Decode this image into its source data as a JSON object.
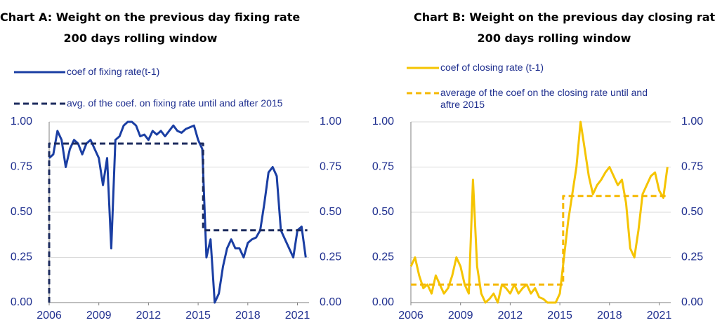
{
  "chart_data": [
    {
      "type": "line",
      "title": "Chart A: Weight on the previous day fixing rate",
      "subtitle": "200 days rolling window",
      "xlim": [
        2006,
        2021.7
      ],
      "xticks": [
        2006,
        2009,
        2012,
        2015,
        2018,
        2021
      ],
      "ylim": [
        0,
        1
      ],
      "yticks": [
        {
          "value": 0,
          "label": "0.00"
        },
        {
          "value": 0.25,
          "label": "0.25"
        },
        {
          "value": 0.5,
          "label": "0.50"
        },
        {
          "value": 0.75,
          "label": "0.75"
        },
        {
          "value": 1,
          "label": "1.00"
        }
      ],
      "y2lim": [
        0,
        1
      ],
      "y2ticks": [
        {
          "value": 0,
          "label": "0.00"
        },
        {
          "value": 0.25,
          "label": "0.25"
        },
        {
          "value": 0.5,
          "label": "0.50"
        },
        {
          "value": 0.75,
          "label": "0.75"
        },
        {
          "value": 1,
          "label": "1.00"
        }
      ],
      "grid": true,
      "series": [
        {
          "name": "coef  of fixing rate(t-1)",
          "color": "#1a3ea3",
          "dash": false,
          "x": [
            2006,
            2006.25,
            2006.5,
            2006.75,
            2007,
            2007.25,
            2007.5,
            2007.75,
            2008,
            2008.25,
            2008.5,
            2008.75,
            2009,
            2009.25,
            2009.5,
            2009.75,
            2010,
            2010.25,
            2010.5,
            2010.75,
            2011,
            2011.25,
            2011.5,
            2011.75,
            2012,
            2012.25,
            2012.5,
            2012.75,
            2013,
            2013.25,
            2013.5,
            2013.75,
            2014,
            2014.25,
            2014.5,
            2014.75,
            2015,
            2015.25,
            2015.5,
            2015.75,
            2016,
            2016.25,
            2016.5,
            2016.75,
            2017,
            2017.25,
            2017.5,
            2017.75,
            2018,
            2018.25,
            2018.5,
            2018.75,
            2019,
            2019.25,
            2019.5,
            2019.75,
            2020,
            2020.25,
            2020.5,
            2020.75,
            2021,
            2021.25,
            2021.5
          ],
          "values": [
            0.8,
            0.82,
            0.95,
            0.9,
            0.75,
            0.85,
            0.9,
            0.88,
            0.82,
            0.88,
            0.9,
            0.85,
            0.8,
            0.65,
            0.8,
            0.3,
            0.9,
            0.92,
            0.98,
            1.0,
            1.0,
            0.98,
            0.92,
            0.93,
            0.9,
            0.95,
            0.93,
            0.95,
            0.92,
            0.95,
            0.98,
            0.95,
            0.94,
            0.96,
            0.97,
            0.98,
            0.9,
            0.85,
            0.25,
            0.35,
            0.0,
            0.05,
            0.2,
            0.3,
            0.35,
            0.3,
            0.3,
            0.25,
            0.33,
            0.35,
            0.36,
            0.4,
            0.55,
            0.72,
            0.75,
            0.7,
            0.4,
            0.35,
            0.3,
            0.25,
            0.4,
            0.42,
            0.25
          ]
        },
        {
          "name": "avg. of the coef. on fixing rate until and after 2015",
          "color": "#1c2b5e",
          "dash": true,
          "x": [
            2006,
            2006,
            2015.3,
            2015.3,
            2021.6
          ],
          "values": [
            0,
            0.88,
            0.88,
            0.4,
            0.4
          ]
        }
      ]
    },
    {
      "type": "line",
      "title": "Chart B: Weight on the previous day closing rate",
      "subtitle": "200 days rolling window",
      "xlim": [
        2006,
        2021.7
      ],
      "xticks": [
        2006,
        2009,
        2012,
        2015,
        2018,
        2021
      ],
      "ylim": [
        0,
        1
      ],
      "yticks": [
        {
          "value": 0,
          "label": "0.00"
        },
        {
          "value": 0.25,
          "label": "0.25"
        },
        {
          "value": 0.5,
          "label": "0.50"
        },
        {
          "value": 0.75,
          "label": "0.75"
        },
        {
          "value": 1,
          "label": "1.00"
        }
      ],
      "y2lim": [
        0,
        1
      ],
      "y2ticks": [
        {
          "value": 0,
          "label": "0.00"
        },
        {
          "value": 0.25,
          "label": "0.25"
        },
        {
          "value": 0.5,
          "label": "0.50"
        },
        {
          "value": 0.75,
          "label": "0.75"
        },
        {
          "value": 1,
          "label": "1.00"
        }
      ],
      "grid": true,
      "series": [
        {
          "name": "coef of closing rate (t-1)",
          "color": "#f5c400",
          "dash": false,
          "x": [
            2006,
            2006.25,
            2006.5,
            2006.75,
            2007,
            2007.25,
            2007.5,
            2007.75,
            2008,
            2008.25,
            2008.5,
            2008.75,
            2009,
            2009.25,
            2009.5,
            2009.75,
            2010,
            2010.25,
            2010.5,
            2010.75,
            2011,
            2011.25,
            2011.5,
            2011.75,
            2012,
            2012.25,
            2012.5,
            2012.75,
            2013,
            2013.25,
            2013.5,
            2013.75,
            2014,
            2014.25,
            2014.5,
            2014.75,
            2015,
            2015.25,
            2015.5,
            2015.75,
            2016,
            2016.25,
            2016.5,
            2016.75,
            2017,
            2017.25,
            2017.5,
            2017.75,
            2018,
            2018.25,
            2018.5,
            2018.75,
            2019,
            2019.25,
            2019.5,
            2019.75,
            2020,
            2020.25,
            2020.5,
            2020.75,
            2021,
            2021.25,
            2021.5
          ],
          "values": [
            0.2,
            0.25,
            0.15,
            0.08,
            0.1,
            0.05,
            0.15,
            0.1,
            0.05,
            0.08,
            0.15,
            0.25,
            0.2,
            0.1,
            0.05,
            0.68,
            0.2,
            0.05,
            0.0,
            0.02,
            0.05,
            0.0,
            0.1,
            0.08,
            0.05,
            0.1,
            0.05,
            0.08,
            0.1,
            0.05,
            0.08,
            0.03,
            0.02,
            0.0,
            0.0,
            0.0,
            0.05,
            0.25,
            0.45,
            0.6,
            0.75,
            1.0,
            0.85,
            0.7,
            0.6,
            0.65,
            0.68,
            0.72,
            0.75,
            0.7,
            0.65,
            0.68,
            0.55,
            0.3,
            0.25,
            0.4,
            0.6,
            0.65,
            0.7,
            0.72,
            0.62,
            0.58,
            0.75
          ]
        },
        {
          "name": "average of the coef on the closing rate  until and aftre 2015",
          "color": "#f5b800",
          "dash": true,
          "x": [
            2006,
            2015.2,
            2015.2,
            2021.6
          ],
          "values": [
            0.1,
            0.1,
            0.59,
            0.59
          ]
        }
      ]
    }
  ]
}
